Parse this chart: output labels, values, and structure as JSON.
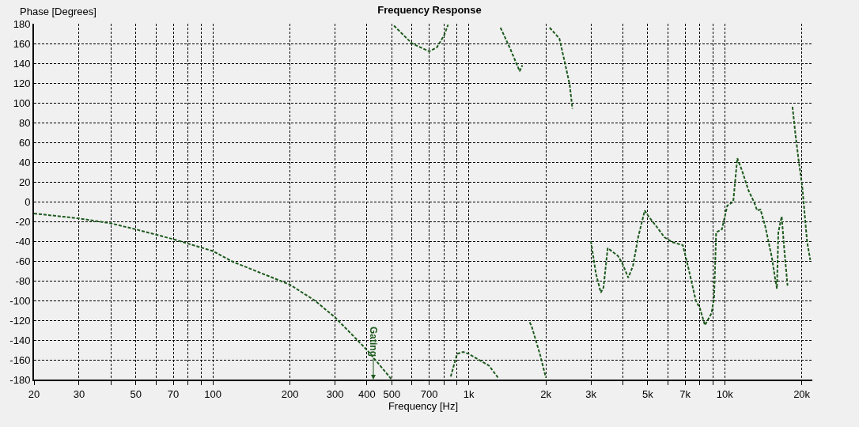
{
  "chart_data": {
    "type": "line",
    "title": "Frequency Response",
    "xlabel": "Frequency [Hz]",
    "ylabel": "Phase [Degrees]",
    "annotations": [
      "Gating"
    ],
    "series": [
      {
        "color": "#1d5a1d",
        "x": [
          20,
          30,
          40,
          50,
          70,
          100,
          120,
          150,
          200,
          250,
          300,
          400,
          500,
          null,
          510,
          600,
          700,
          750,
          800,
          830,
          null,
          850,
          900,
          950,
          1000,
          1200,
          1300,
          null,
          1330,
          1450,
          1580,
          1620,
          null,
          1730,
          1760,
          1900,
          2000,
          null,
          2070,
          2260,
          2400,
          2480,
          2540,
          null,
          3000,
          3140,
          3280,
          3360,
          3490,
          3830,
          3990,
          4200,
          4380,
          4590,
          4870,
          5040,
          5410,
          5810,
          6240,
          6860,
          7180,
          7710,
          8000,
          8370,
          8880,
          9090,
          9260,
          9750,
          10240,
          10800,
          11200,
          11700,
          12400,
          13000,
          13400,
          13800,
          14400,
          15300,
          15700,
          16000,
          16200,
          16700,
          17100,
          17600,
          null,
          18400,
          18900,
          19400,
          20100,
          20600,
          21000,
          21600
        ],
        "values": [
          -12,
          -17,
          -22,
          -28,
          -38,
          -50,
          -61,
          -71,
          -84,
          -100,
          -117,
          -150,
          -180,
          null,
          178,
          160,
          152,
          156,
          168,
          179,
          null,
          -177,
          -154,
          -152,
          -154,
          -166,
          -178,
          null,
          176,
          155,
          132,
          138,
          null,
          -122,
          -126,
          -155,
          -178,
          null,
          176,
          165,
          135,
          118,
          94,
          null,
          -40,
          -73,
          -92,
          -87,
          -47,
          -55,
          -63,
          -77,
          -65,
          -36,
          -9,
          -15,
          -25,
          -36,
          -41,
          -44,
          -65,
          -100,
          -108,
          -125,
          -113,
          -97,
          -31,
          -28,
          -4,
          0,
          44,
          31,
          11,
          0,
          -9,
          -8,
          -25,
          -57,
          -76,
          -88,
          -31,
          -15,
          -49,
          -85,
          null,
          96,
          68,
          44,
          15,
          -17,
          -41,
          -59
        ]
      }
    ],
    "line_style": "dashed",
    "marker": "none",
    "grid": true,
    "log": "x",
    "xlim": [
      20,
      22000
    ],
    "xticks": [
      20,
      30,
      {
        "value": 40,
        "label": null
      },
      50,
      {
        "value": 60,
        "label": null
      },
      70,
      {
        "value": 80,
        "label": null
      },
      {
        "value": 90,
        "label": null
      },
      100,
      200,
      300,
      400,
      500,
      {
        "value": 600,
        "label": null
      },
      700,
      {
        "value": 800,
        "label": null
      },
      {
        "value": 900,
        "label": null
      },
      {
        "value": 1000,
        "label": "1k"
      },
      {
        "value": 2000,
        "label": "2k"
      },
      {
        "value": 3000,
        "label": "3k"
      },
      {
        "value": 4000,
        "label": null
      },
      {
        "value": 5000,
        "label": "5k"
      },
      {
        "value": 6000,
        "label": null
      },
      {
        "value": 7000,
        "label": "7k"
      },
      {
        "value": 8000,
        "label": null
      },
      {
        "value": 9000,
        "label": null
      },
      {
        "value": 10000,
        "label": "10k"
      },
      {
        "value": 20000,
        "label": "20k"
      }
    ],
    "ylim": [
      -180,
      180
    ],
    "yticks": [
      -180,
      -160,
      -140,
      -120,
      -100,
      -80,
      -60,
      -40,
      -20,
      0,
      20,
      40,
      60,
      80,
      100,
      120,
      140,
      160,
      180
    ]
  }
}
